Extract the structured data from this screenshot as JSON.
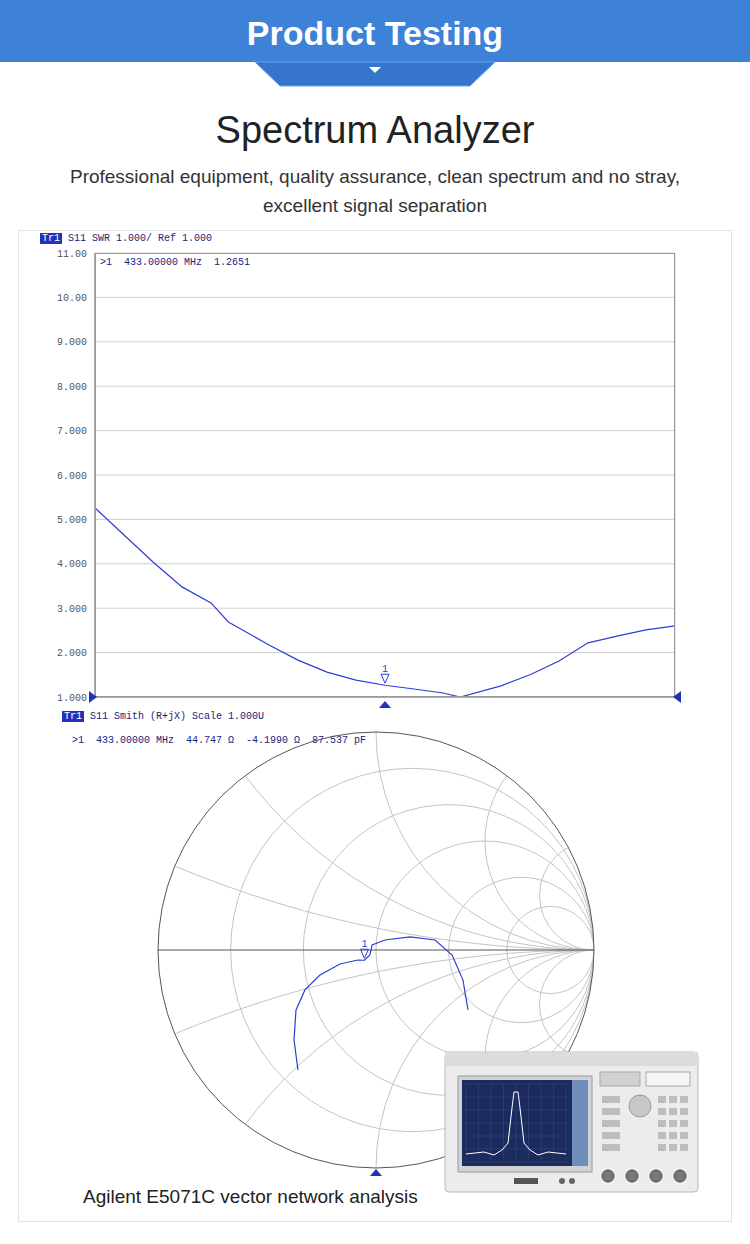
{
  "banner": "Product Testing",
  "title": "Spectrum Analyzer",
  "subtitle_lines": [
    "Professional equipment, quality assurance, clean spectrum and no stray,",
    "excellent signal separation"
  ],
  "chart_data": [
    {
      "type": "line",
      "trace_tag": "Tr1",
      "title": "S11 SWR 1.000/ Ref 1.000",
      "readout": ">1  433.00000 MHz  1.2651",
      "x": [
        0,
        0.5,
        1,
        1.5,
        2,
        2.3,
        3,
        3.5,
        4,
        4.5,
        5,
        5.5,
        6,
        6.3,
        7,
        7.5,
        8,
        8.5,
        9,
        9.5,
        10
      ],
      "values": [
        5.26,
        4.65,
        4.04,
        3.48,
        3.12,
        2.69,
        2.17,
        1.83,
        1.56,
        1.38,
        1.2651,
        1.18,
        1.09,
        1.0,
        1.25,
        1.5,
        1.81,
        2.22,
        2.37,
        2.51,
        2.6
      ],
      "color": "#2b3fd4",
      "xlim": [
        0,
        10
      ],
      "xticks": [
        0,
        1,
        2,
        3,
        4,
        5,
        6,
        7,
        8,
        9,
        10
      ],
      "ylim": [
        1,
        11
      ],
      "yticks": [
        {
          "value": 1,
          "label": "1.000"
        },
        {
          "value": 2,
          "label": "2.000"
        },
        {
          "value": 3,
          "label": "3.000"
        },
        {
          "value": 4,
          "label": "4.000"
        },
        {
          "value": 5,
          "label": "5.000"
        },
        {
          "value": 6,
          "label": "6.000"
        },
        {
          "value": 7,
          "label": "7.000"
        },
        {
          "value": 8,
          "label": "8.000"
        },
        {
          "value": 9,
          "label": "9.000"
        },
        {
          "value": 10,
          "label": "10.00"
        },
        {
          "value": 11,
          "label": "11.00"
        }
      ],
      "grid": true,
      "tick_labels": "y",
      "annotations": [
        {
          "text": "1",
          "x": 5,
          "y": 1.2651
        }
      ]
    },
    {
      "type": "smith",
      "trace_tag": "Tr1",
      "title": "S11 Smith (R+jX) Scale 1.000U",
      "readout": ">1  433.00000 MHz  44.747 Ω  -4.1990 Ω  87.537 pF",
      "x": [
        -0.358,
        -0.376,
        -0.367,
        -0.326,
        -0.257,
        -0.165,
        -0.083,
        -0.053,
        -0.028,
        -0.018,
        0.041,
        0.156,
        0.271,
        0.349,
        0.399,
        0.422
      ],
      "values": [
        -0.55,
        -0.413,
        -0.275,
        -0.183,
        -0.115,
        -0.064,
        -0.046,
        -0.047,
        -0.023,
        0.023,
        0.046,
        0.06,
        0.046,
        -0.023,
        -0.138,
        -0.275
      ],
      "color": "#2b3fd4",
      "xlim": [
        -1,
        1
      ],
      "ylim": [
        -1,
        1
      ],
      "grid": true,
      "tick_labels": false,
      "annotations": [
        {
          "text": "1",
          "x": -0.053,
          "y": -0.047
        }
      ]
    }
  ],
  "caption": "Agilent E5071C vector network analysis"
}
